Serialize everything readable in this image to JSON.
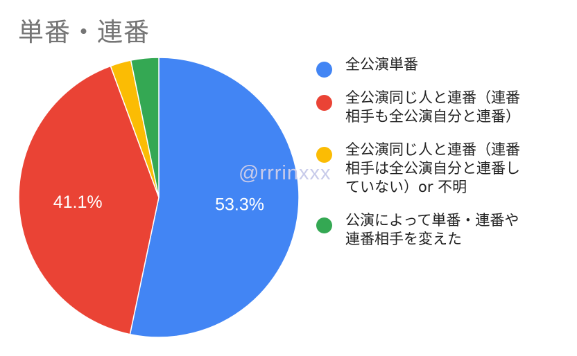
{
  "header": {
    "title": "単番・連番"
  },
  "watermark": "@rrrinxxx",
  "chart_data": {
    "type": "pie",
    "title": "単番・連番",
    "legend_position": "right",
    "slices": [
      {
        "name": "全公演単番",
        "value": 53.3,
        "label": "53.3%",
        "color": "#4285F4"
      },
      {
        "name": "全公演同じ人と連番（連番\n相手も全公演自分と連番）",
        "value": 41.1,
        "label": "41.1%",
        "color": "#EA4335"
      },
      {
        "name": "全公演同じ人と連番（連番\n相手は全公演自分と連番し\nていない）or 不明",
        "value": 2.4,
        "label": "",
        "color": "#FBBC04"
      },
      {
        "name": "公演によって単番・連番や\n連番相手を変えた",
        "value": 3.2,
        "label": "",
        "color": "#34A853"
      }
    ]
  }
}
